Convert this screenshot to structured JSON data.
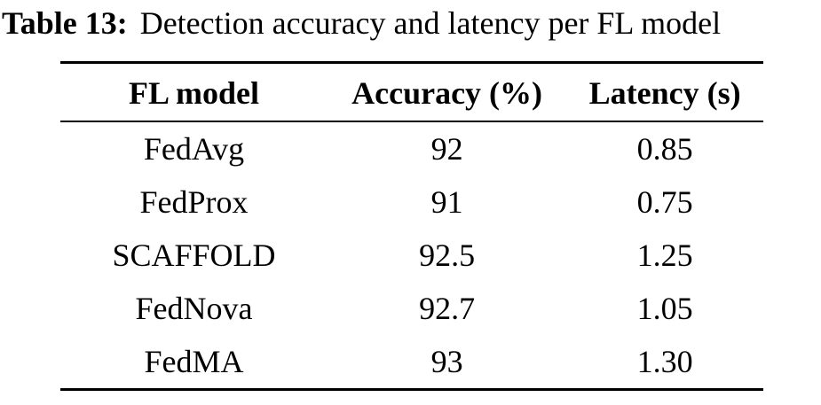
{
  "caption": {
    "label": "Table 13:",
    "text": "Detection accuracy and latency per FL model"
  },
  "table": {
    "headers": [
      "FL model",
      "Accuracy (%)",
      "Latency (s)"
    ],
    "rows": [
      [
        "FedAvg",
        "92",
        "0.85"
      ],
      [
        "FedProx",
        "91",
        "0.75"
      ],
      [
        "SCAFFOLD",
        "92.5",
        "1.25"
      ],
      [
        "FedNova",
        "92.7",
        "1.05"
      ],
      [
        "FedMA",
        "93",
        "1.30"
      ]
    ]
  },
  "chart_data": {
    "type": "table",
    "title": "Table 13: Detection accuracy and latency per FL model",
    "columns": [
      "FL model",
      "Accuracy (%)",
      "Latency (s)"
    ],
    "rows": [
      {
        "model": "FedAvg",
        "accuracy_pct": 92,
        "latency_s": 0.85
      },
      {
        "model": "FedProx",
        "accuracy_pct": 91,
        "latency_s": 0.75
      },
      {
        "model": "SCAFFOLD",
        "accuracy_pct": 92.5,
        "latency_s": 1.25
      },
      {
        "model": "FedNova",
        "accuracy_pct": 92.7,
        "latency_s": 1.05
      },
      {
        "model": "FedMA",
        "accuracy_pct": 93,
        "latency_s": 1.3
      }
    ]
  }
}
